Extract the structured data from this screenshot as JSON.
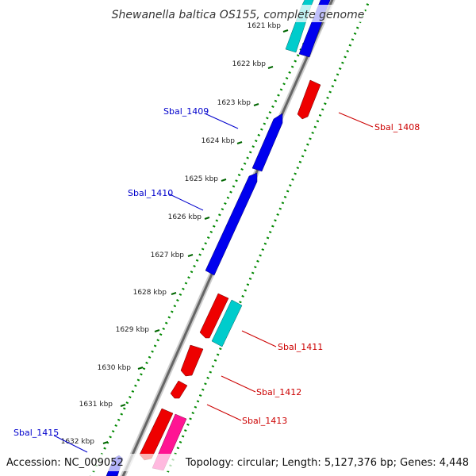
{
  "title": "Shewanella baltica OS155, complete genome",
  "footer": {
    "accession": "Accession: NC_009052",
    "summary": "Topology: circular; Length: 5,127,376 bp; Genes: 4,448"
  },
  "ticks": [
    "1621 kbp",
    "1622 kbp",
    "1623 kbp",
    "1624 kbp",
    "1625 kbp",
    "1626 kbp",
    "1627 kbp",
    "1628 kbp",
    "1629 kbp",
    "1630 kbp",
    "1631 kbp",
    "1632 kbp"
  ],
  "gene_labels": [
    "Sbal_1409",
    "Sbal_1410",
    "Sbal_1415",
    "Sbal_1408",
    "Sbal_1411",
    "Sbal_1412",
    "Sbal_1413"
  ],
  "colors": {
    "forward_gene": "#0000ee",
    "reverse_gene": "#ee0000",
    "rna_gene": "#00cccc",
    "other_gene": "#ff1493",
    "backbone": "#888888",
    "tick_mark": "#006600",
    "dotted_ring": "#008800"
  }
}
